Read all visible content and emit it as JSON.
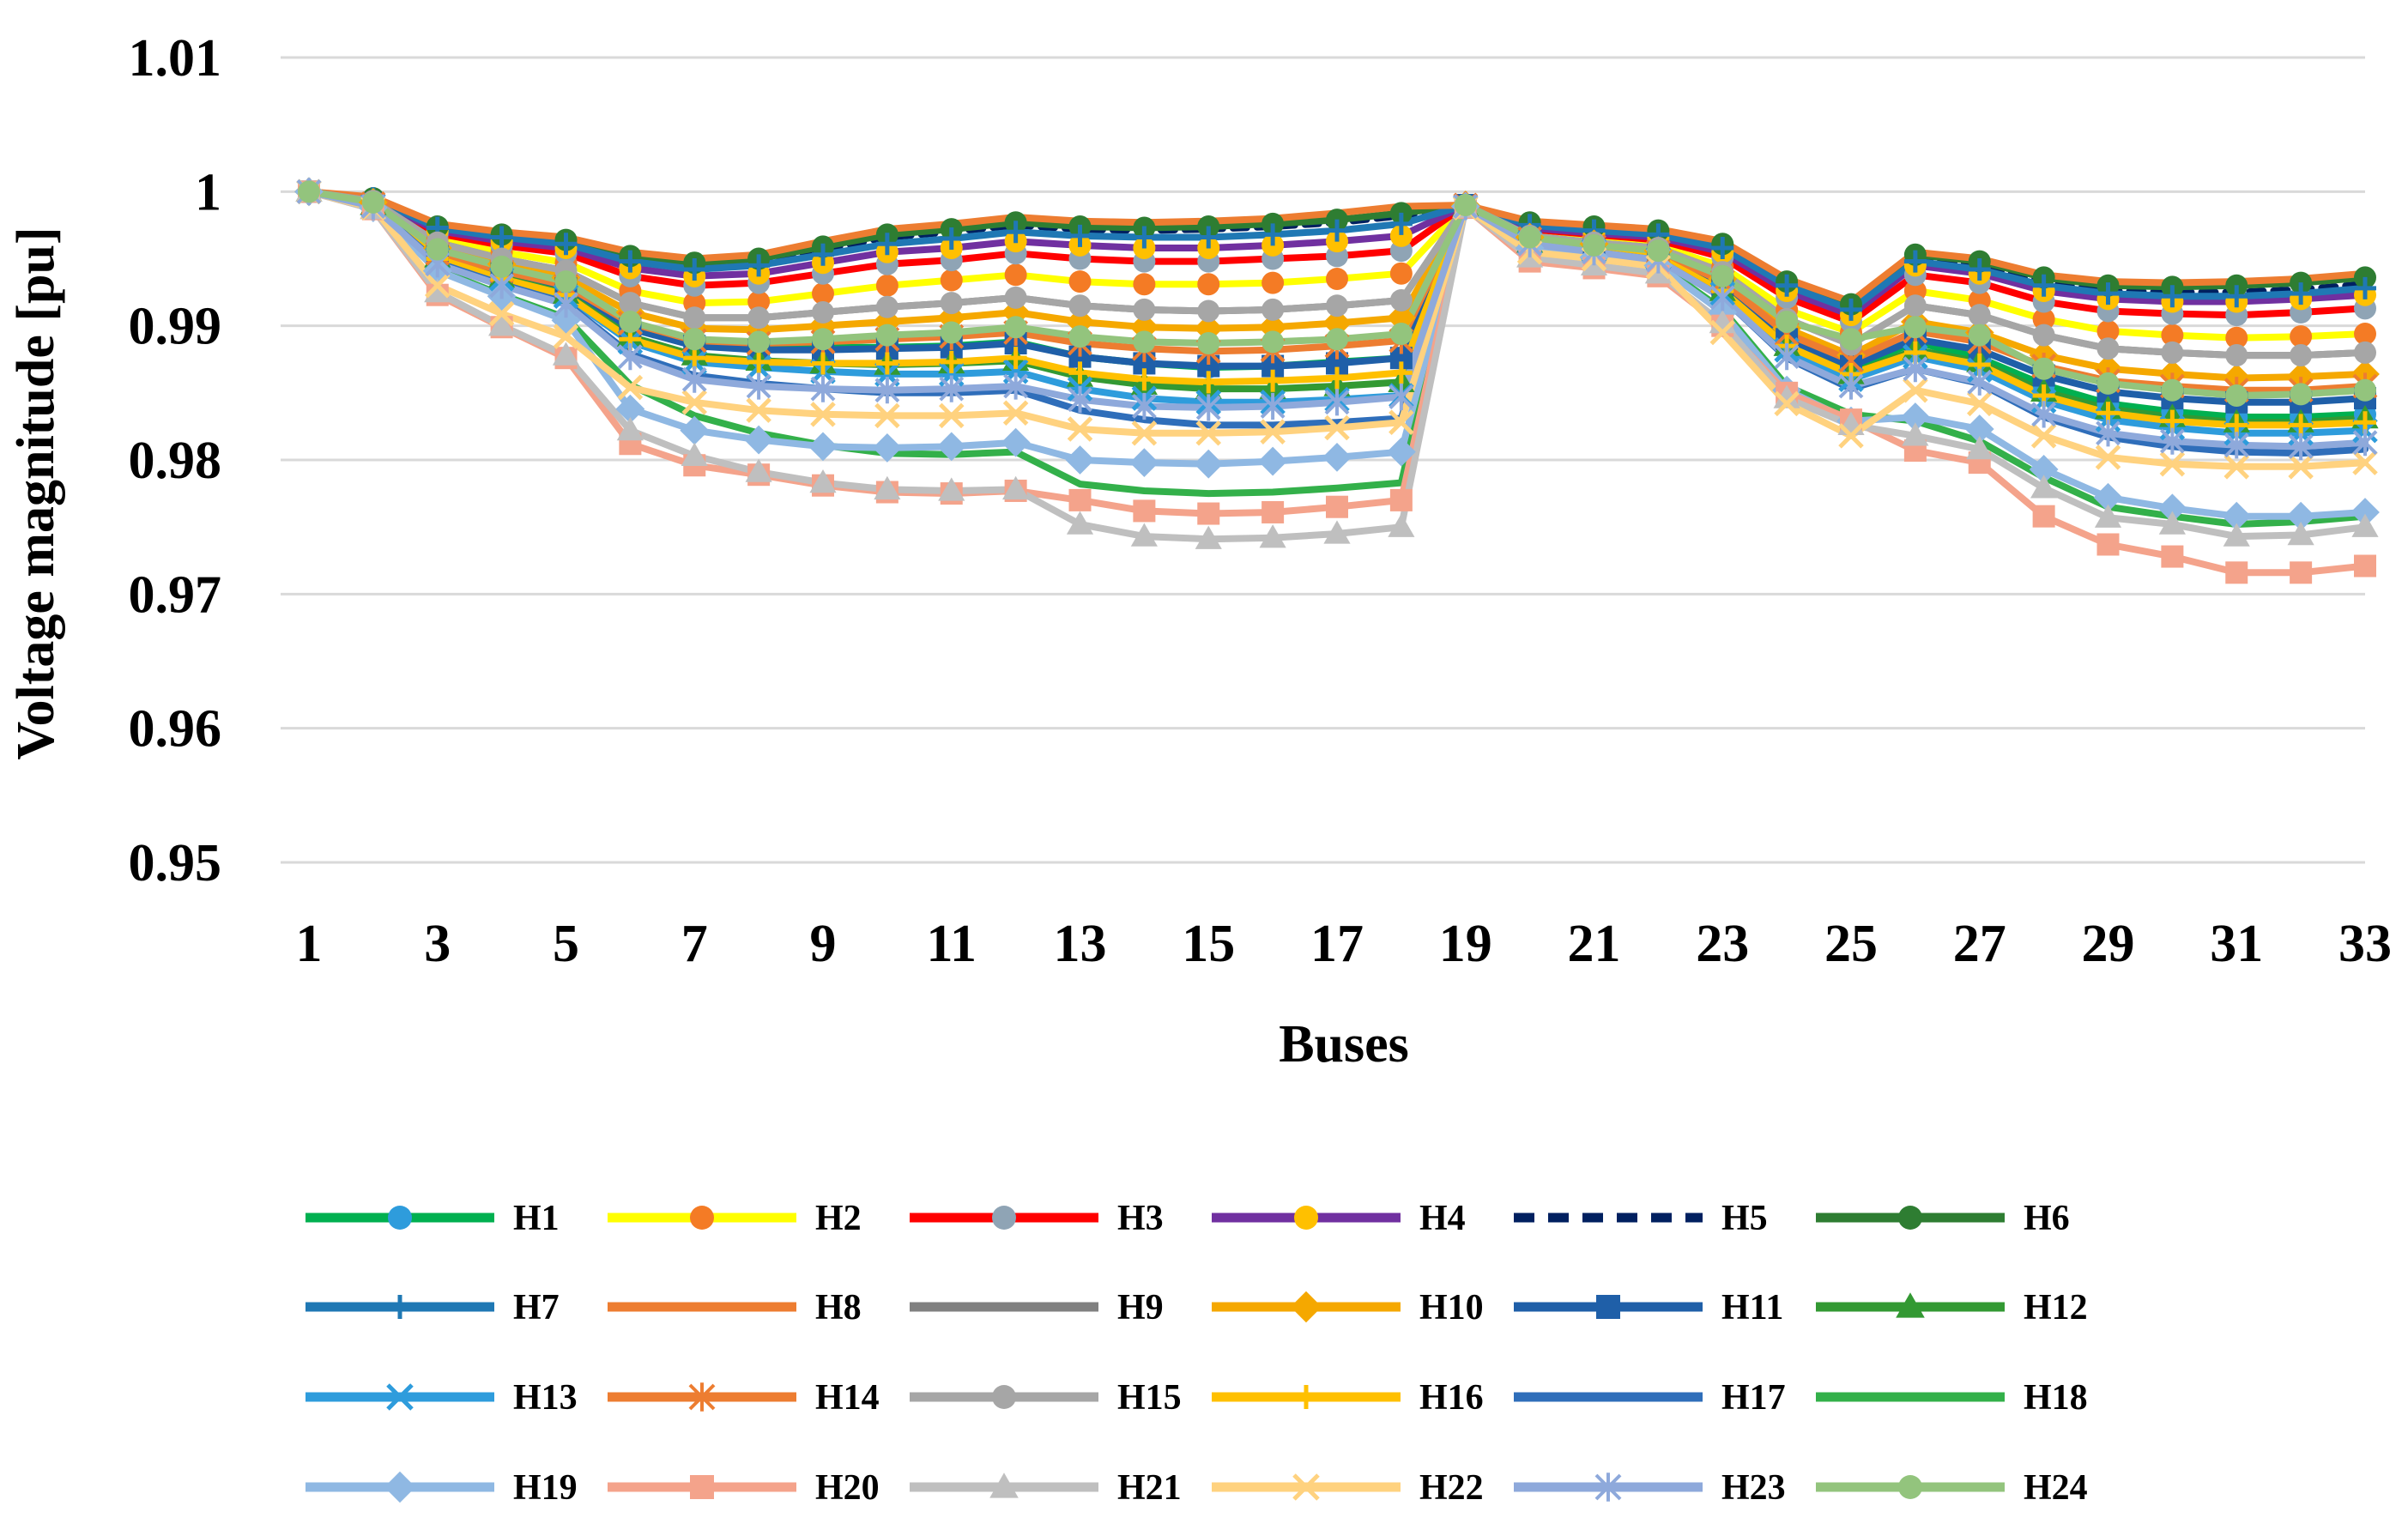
{
  "chart_data": {
    "type": "line",
    "title": "",
    "xlabel": "Buses",
    "ylabel": "Voltage magnitude [pu]",
    "ylim": [
      0.95,
      1.01
    ],
    "yticks": [
      "0.95",
      "0.96",
      "0.97",
      "0.98",
      "0.99",
      "1",
      "1.01"
    ],
    "ytick_values": [
      0.95,
      0.96,
      0.97,
      0.98,
      0.99,
      1.0,
      1.01
    ],
    "xlim": [
      1,
      33
    ],
    "xticks": [
      "1",
      "3",
      "5",
      "7",
      "9",
      "11",
      "13",
      "15",
      "17",
      "19",
      "21",
      "23",
      "25",
      "27",
      "29",
      "31",
      "33"
    ],
    "xtick_values": [
      1,
      3,
      5,
      7,
      9,
      11,
      13,
      15,
      17,
      19,
      21,
      23,
      25,
      27,
      29,
      31,
      33
    ],
    "grid": "horizontal",
    "legend_position": "bottom",
    "series": [
      {
        "name": "H1",
        "color": "#00b050",
        "marker": "circle",
        "marker_color": "#2e9cdc",
        "dash": false,
        "values": [
          1.0,
          0.9991,
          0.9955,
          0.9942,
          0.993,
          0.99,
          0.9888,
          0.9885,
          0.9884,
          0.9884,
          0.9885,
          0.9888,
          0.9877,
          0.9872,
          0.9869,
          0.987,
          0.9873,
          0.9876,
          0.9989,
          0.9963,
          0.9958,
          0.9953,
          0.9928,
          0.9888,
          0.9868,
          0.9888,
          0.9876,
          0.9856,
          0.9842,
          0.9836,
          0.9832,
          0.9832,
          0.9834
        ]
      },
      {
        "name": "H2",
        "color": "#ffff00",
        "marker": "circle",
        "marker_color": "#f47b25",
        "dash": false,
        "values": [
          1.0,
          0.9993,
          0.9965,
          0.9955,
          0.9947,
          0.9926,
          0.9917,
          0.9918,
          0.9924,
          0.993,
          0.9934,
          0.9938,
          0.9933,
          0.9931,
          0.9931,
          0.9932,
          0.9935,
          0.9939,
          0.999,
          0.9969,
          0.9964,
          0.996,
          0.9944,
          0.9912,
          0.9895,
          0.9926,
          0.9919,
          0.9905,
          0.9896,
          0.9893,
          0.9891,
          0.9892,
          0.9894
        ]
      },
      {
        "name": "H3",
        "color": "#ff0000",
        "marker": "circle",
        "marker_color": "#8fa4b5",
        "dash": false,
        "values": [
          1.0,
          0.9994,
          0.9969,
          0.996,
          0.9954,
          0.9937,
          0.993,
          0.9932,
          0.9939,
          0.9946,
          0.9949,
          0.9954,
          0.995,
          0.9948,
          0.9948,
          0.995,
          0.9952,
          0.9956,
          0.999,
          0.9972,
          0.9968,
          0.9964,
          0.9951,
          0.9921,
          0.9903,
          0.9938,
          0.9932,
          0.9918,
          0.9911,
          0.9909,
          0.9908,
          0.991,
          0.9913
        ]
      },
      {
        "name": "H4",
        "color": "#7030a0",
        "marker": "circle",
        "marker_color": "#ffc000",
        "dash": false,
        "values": [
          1.0,
          0.9994,
          0.9971,
          0.9963,
          0.9958,
          0.9943,
          0.9937,
          0.9939,
          0.9947,
          0.9955,
          0.9958,
          0.9963,
          0.996,
          0.9958,
          0.9958,
          0.996,
          0.9963,
          0.9967,
          0.999,
          0.9973,
          0.9969,
          0.9966,
          0.9955,
          0.9926,
          0.9908,
          0.9945,
          0.9939,
          0.9926,
          0.992,
          0.9918,
          0.9918,
          0.992,
          0.9923
        ]
      },
      {
        "name": "H5",
        "color": "#002060",
        "marker": "none",
        "marker_color": "#002060",
        "dash": true,
        "values": [
          1.0,
          0.9995,
          0.9974,
          0.9967,
          0.9963,
          0.995,
          0.9945,
          0.9948,
          0.9957,
          0.9966,
          0.997,
          0.9975,
          0.9972,
          0.9971,
          0.9972,
          0.9974,
          0.9977,
          0.9982,
          0.999,
          0.9976,
          0.9973,
          0.997,
          0.9959,
          0.9931,
          0.9913,
          0.995,
          0.9945,
          0.9932,
          0.9926,
          0.9925,
          0.9925,
          0.9927,
          0.9931
        ]
      },
      {
        "name": "H6",
        "color": "#2e7d32",
        "marker": "circle",
        "marker_color": "#2e7d32",
        "dash": false,
        "values": [
          1.0,
          0.9995,
          0.9974,
          0.9968,
          0.9964,
          0.9952,
          0.9947,
          0.995,
          0.9959,
          0.9968,
          0.9972,
          0.9977,
          0.9974,
          0.9973,
          0.9974,
          0.9976,
          0.9979,
          0.9984,
          0.999,
          0.9977,
          0.9974,
          0.9971,
          0.9961,
          0.9933,
          0.9916,
          0.9953,
          0.9948,
          0.9936,
          0.993,
          0.9929,
          0.993,
          0.9932,
          0.9936
        ]
      },
      {
        "name": "H7",
        "color": "#1f78b4",
        "marker": "plus",
        "marker_color": "#1f78b4",
        "dash": false,
        "values": [
          1.0,
          0.9995,
          0.9973,
          0.9966,
          0.9961,
          0.9948,
          0.9942,
          0.9945,
          0.9953,
          0.9961,
          0.9965,
          0.997,
          0.9967,
          0.9966,
          0.9966,
          0.9968,
          0.9971,
          0.9976,
          0.999,
          0.9975,
          0.9971,
          0.9968,
          0.9958,
          0.993,
          0.9912,
          0.9948,
          0.9942,
          0.993,
          0.9924,
          0.9922,
          0.9922,
          0.9924,
          0.9928
        ]
      },
      {
        "name": "H8",
        "color": "#ed7d31",
        "marker": "none",
        "marker_color": "#ed7d31",
        "dash": false,
        "values": [
          1.0,
          0.9996,
          0.9976,
          0.997,
          0.9966,
          0.9955,
          0.995,
          0.9953,
          0.9963,
          0.9972,
          0.9976,
          0.9981,
          0.9978,
          0.9977,
          0.9978,
          0.998,
          0.9984,
          0.9989,
          0.999,
          0.9978,
          0.9975,
          0.9972,
          0.9963,
          0.9935,
          0.9918,
          0.9955,
          0.995,
          0.9938,
          0.9933,
          0.9932,
          0.9933,
          0.9935,
          0.9939
        ]
      },
      {
        "name": "H9",
        "color": "#808080",
        "marker": "none",
        "marker_color": "#808080",
        "dash": false,
        "values": [
          1.0,
          0.9993,
          0.9962,
          0.995,
          0.9941,
          0.9917,
          0.9906,
          0.9906,
          0.991,
          0.9914,
          0.9917,
          0.9921,
          0.9915,
          0.9912,
          0.9911,
          0.9912,
          0.9915,
          0.9919,
          0.999,
          0.9967,
          0.9962,
          0.9958,
          0.994,
          0.9905,
          0.9886,
          0.9915,
          0.9908,
          0.9893,
          0.9883,
          0.988,
          0.9878,
          0.9878,
          0.988
        ]
      },
      {
        "name": "H10",
        "color": "#f5a800",
        "marker": "diamond",
        "marker_color": "#f5a800",
        "dash": false,
        "values": [
          1.0,
          0.9992,
          0.9958,
          0.9946,
          0.9936,
          0.991,
          0.9898,
          0.9897,
          0.99,
          0.9903,
          0.9906,
          0.991,
          0.9903,
          0.9899,
          0.9898,
          0.9899,
          0.9902,
          0.9906,
          0.999,
          0.9966,
          0.9961,
          0.9956,
          0.9935,
          0.9898,
          0.9878,
          0.9903,
          0.9895,
          0.9878,
          0.9868,
          0.9864,
          0.9861,
          0.9862,
          0.9864
        ]
      },
      {
        "name": "H11",
        "color": "#1f5fa8",
        "marker": "square",
        "marker_color": "#1f5fa8",
        "dash": false,
        "values": [
          1.0,
          0.9991,
          0.9953,
          0.994,
          0.9928,
          0.9898,
          0.9885,
          0.9882,
          0.9882,
          0.9883,
          0.9884,
          0.9887,
          0.9877,
          0.9872,
          0.987,
          0.987,
          0.9872,
          0.9876,
          0.999,
          0.9964,
          0.9958,
          0.9953,
          0.993,
          0.989,
          0.987,
          0.989,
          0.9882,
          0.9863,
          0.9851,
          0.9846,
          0.9843,
          0.9843,
          0.9846
        ]
      },
      {
        "name": "H12",
        "color": "#339933",
        "marker": "triangle",
        "marker_color": "#339933",
        "dash": false,
        "values": [
          1.0,
          0.999,
          0.9951,
          0.9936,
          0.9924,
          0.9892,
          0.9878,
          0.9874,
          0.9872,
          0.9871,
          0.9872,
          0.9874,
          0.9862,
          0.9856,
          0.9853,
          0.9853,
          0.9855,
          0.9858,
          0.9989,
          0.9962,
          0.9957,
          0.9951,
          0.9926,
          0.9885,
          0.9864,
          0.9882,
          0.9873,
          0.9851,
          0.9838,
          0.9832,
          0.9828,
          0.9828,
          0.9831
        ]
      },
      {
        "name": "H13",
        "color": "#2e9cdc",
        "marker": "x",
        "marker_color": "#2e9cdc",
        "dash": false,
        "values": [
          1.0,
          0.999,
          0.995,
          0.9935,
          0.9922,
          0.9888,
          0.9873,
          0.9869,
          0.9866,
          0.9864,
          0.9864,
          0.9866,
          0.9853,
          0.9846,
          0.9843,
          0.9843,
          0.9845,
          0.9848,
          0.9989,
          0.9962,
          0.9956,
          0.995,
          0.9924,
          0.9882,
          0.986,
          0.9877,
          0.9867,
          0.9844,
          0.983,
          0.9824,
          0.982,
          0.982,
          0.9822
        ]
      },
      {
        "name": "H14",
        "color": "#ed7d31",
        "marker": "asterisk",
        "marker_color": "#ed7d31",
        "dash": false,
        "values": [
          1.0,
          0.9991,
          0.9954,
          0.9941,
          0.993,
          0.9902,
          0.9889,
          0.9887,
          0.9888,
          0.989,
          0.9892,
          0.9895,
          0.9887,
          0.9883,
          0.9881,
          0.9882,
          0.9885,
          0.9889,
          0.999,
          0.9965,
          0.9959,
          0.9955,
          0.9933,
          0.9894,
          0.9874,
          0.9896,
          0.9888,
          0.987,
          0.9859,
          0.9855,
          0.9852,
          0.9852,
          0.9855
        ]
      },
      {
        "name": "H15",
        "color": "#a6a6a6",
        "marker": "circle",
        "marker_color": "#a6a6a6",
        "dash": false,
        "values": [
          1.0,
          0.9993,
          0.9962,
          0.995,
          0.9941,
          0.9917,
          0.9906,
          0.9906,
          0.991,
          0.9914,
          0.9917,
          0.9921,
          0.9915,
          0.9912,
          0.9911,
          0.9912,
          0.9915,
          0.9919,
          0.999,
          0.9967,
          0.9962,
          0.9958,
          0.994,
          0.9905,
          0.9886,
          0.9915,
          0.9908,
          0.9893,
          0.9883,
          0.988,
          0.9878,
          0.9878,
          0.988
        ]
      },
      {
        "name": "H16",
        "color": "#ffc000",
        "marker": "plus",
        "marker_color": "#ffc000",
        "dash": false,
        "values": [
          1.0,
          0.999,
          0.995,
          0.9935,
          0.9923,
          0.989,
          0.9876,
          0.9873,
          0.9872,
          0.9872,
          0.9873,
          0.9876,
          0.9865,
          0.986,
          0.9858,
          0.9859,
          0.9861,
          0.9865,
          0.9989,
          0.9962,
          0.9957,
          0.9951,
          0.9926,
          0.9885,
          0.9864,
          0.988,
          0.9871,
          0.9848,
          0.9835,
          0.9829,
          0.9826,
          0.9826,
          0.9828
        ]
      },
      {
        "name": "H17",
        "color": "#2f6eba",
        "marker": "none",
        "marker_color": "#2f6eba",
        "dash": false,
        "values": [
          1.0,
          0.9989,
          0.9947,
          0.9931,
          0.9917,
          0.9879,
          0.9863,
          0.9857,
          0.9853,
          0.985,
          0.985,
          0.9852,
          0.9837,
          0.983,
          0.9826,
          0.9826,
          0.9828,
          0.9831,
          0.9989,
          0.9961,
          0.9955,
          0.9949,
          0.9921,
          0.9876,
          0.9853,
          0.9868,
          0.9857,
          0.9832,
          0.9817,
          0.981,
          0.9806,
          0.9805,
          0.9808
        ]
      },
      {
        "name": "H18",
        "color": "#33b04a",
        "marker": "none",
        "marker_color": "#33b04a",
        "dash": false,
        "values": [
          1.0,
          0.9988,
          0.9942,
          0.9923,
          0.9906,
          0.9856,
          0.9833,
          0.982,
          0.9811,
          0.9805,
          0.9804,
          0.9806,
          0.9782,
          0.9777,
          0.9775,
          0.9776,
          0.9779,
          0.9783,
          0.9989,
          0.9958,
          0.9952,
          0.9946,
          0.9912,
          0.9855,
          0.9834,
          0.9829,
          0.9814,
          0.9787,
          0.9765,
          0.9758,
          0.9752,
          0.9754,
          0.9758
        ]
      },
      {
        "name": "H19",
        "color": "#8fb8e3",
        "marker": "diamond",
        "marker_color": "#8fb8e3",
        "dash": false,
        "values": [
          1.0,
          0.9988,
          0.9941,
          0.9922,
          0.9904,
          0.9838,
          0.9822,
          0.9815,
          0.981,
          0.9809,
          0.981,
          0.9813,
          0.98,
          0.9798,
          0.9797,
          0.9799,
          0.9802,
          0.9806,
          0.9989,
          0.9958,
          0.9951,
          0.9945,
          0.991,
          0.9852,
          0.9829,
          0.9832,
          0.9823,
          0.9793,
          0.9772,
          0.9764,
          0.9758,
          0.9758,
          0.9761
        ]
      },
      {
        "name": "H20",
        "color": "#f4a38b",
        "marker": "square",
        "marker_color": "#f4a38b",
        "dash": false,
        "values": [
          1.0,
          0.9987,
          0.9923,
          0.9899,
          0.9876,
          0.9812,
          0.9796,
          0.9789,
          0.9781,
          0.9776,
          0.9775,
          0.9777,
          0.977,
          0.9762,
          0.976,
          0.9761,
          0.9765,
          0.977,
          0.9988,
          0.9948,
          0.9943,
          0.9937,
          0.99,
          0.985,
          0.983,
          0.9807,
          0.9798,
          0.9758,
          0.9737,
          0.9728,
          0.9716,
          0.9716,
          0.9721
        ]
      },
      {
        "name": "H21",
        "color": "#bfbfbf",
        "marker": "triangle",
        "marker_color": "#bfbfbf",
        "dash": false,
        "values": [
          1.0,
          0.9987,
          0.9925,
          0.99,
          0.9878,
          0.9822,
          0.9803,
          0.9791,
          0.9783,
          0.9778,
          0.9777,
          0.9778,
          0.9752,
          0.9743,
          0.9741,
          0.9742,
          0.9745,
          0.975,
          0.9988,
          0.9951,
          0.9945,
          0.9939,
          0.9902,
          0.9846,
          0.9826,
          0.9818,
          0.9808,
          0.9779,
          0.9757,
          0.9752,
          0.9743,
          0.9744,
          0.975
        ]
      },
      {
        "name": "H22",
        "color": "#ffd27f",
        "marker": "x",
        "marker_color": "#ffd27f",
        "dash": false,
        "values": [
          1.0,
          0.9988,
          0.993,
          0.9909,
          0.9892,
          0.9854,
          0.9843,
          0.9837,
          0.9834,
          0.9833,
          0.9833,
          0.9835,
          0.9823,
          0.982,
          0.982,
          0.9821,
          0.9824,
          0.9828,
          0.9988,
          0.9955,
          0.995,
          0.9944,
          0.9895,
          0.9842,
          0.9818,
          0.9852,
          0.9842,
          0.9818,
          0.9802,
          0.9797,
          0.9795,
          0.9795,
          0.9798
        ]
      },
      {
        "name": "H23",
        "color": "#8ea9db",
        "marker": "asterisk",
        "marker_color": "#8ea9db",
        "dash": false,
        "values": [
          1.0,
          0.9989,
          0.9946,
          0.993,
          0.9916,
          0.9877,
          0.986,
          0.9855,
          0.9853,
          0.9852,
          0.9853,
          0.9855,
          0.9845,
          0.984,
          0.9839,
          0.984,
          0.9843,
          0.9847,
          0.9989,
          0.9961,
          0.9955,
          0.9949,
          0.9921,
          0.9877,
          0.9855,
          0.9868,
          0.9858,
          0.9834,
          0.982,
          0.9814,
          0.9811,
          0.981,
          0.9813
        ]
      },
      {
        "name": "H24",
        "color": "#93c47d",
        "marker": "circle",
        "marker_color": "#93c47d",
        "dash": false,
        "values": [
          1.0,
          0.9992,
          0.9957,
          0.9944,
          0.9933,
          0.9903,
          0.989,
          0.9888,
          0.989,
          0.9893,
          0.9895,
          0.9899,
          0.9892,
          0.9888,
          0.9887,
          0.9888,
          0.989,
          0.9894,
          0.999,
          0.9966,
          0.996,
          0.9956,
          0.9937,
          0.9903,
          0.989,
          0.9899,
          0.9893,
          0.9868,
          0.9857,
          0.9852,
          0.9848,
          0.9849,
          0.9852
        ]
      }
    ]
  }
}
